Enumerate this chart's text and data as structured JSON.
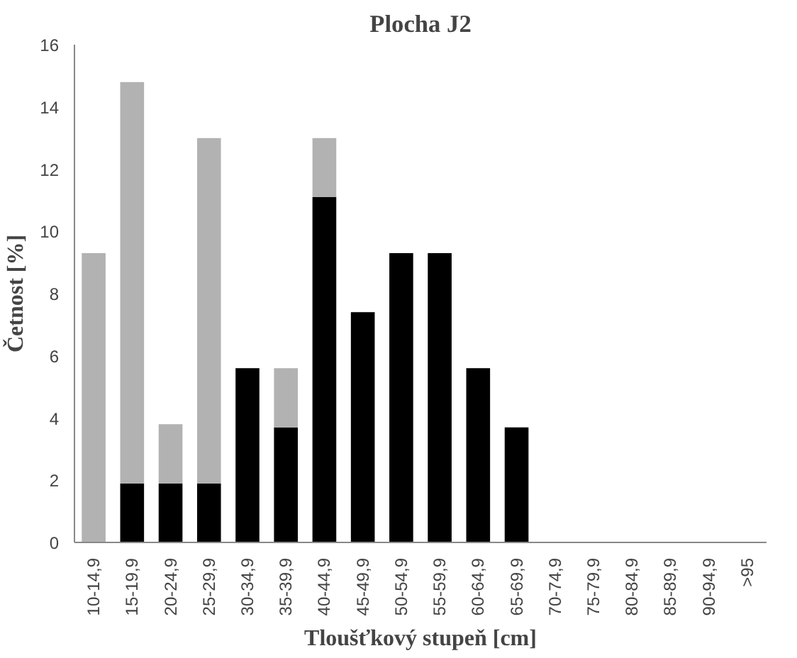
{
  "chart_data": {
    "type": "bar",
    "stacked": true,
    "title": "Plocha J2",
    "xlabel": "Tloušťkový stupeň [cm]",
    "ylabel": "Četnost [%]",
    "categories": [
      "10-14,9",
      "15-19,9",
      "20-24,9",
      "25-29,9",
      "30-34,9",
      "35-39,9",
      "40-44,9",
      "45-49,9",
      "50-54,9",
      "55-59,9",
      "60-64,9",
      "65-69,9",
      "70-74,9",
      "75-79,9",
      "80-84,9",
      "85-89,9",
      "90-94,9",
      ">95"
    ],
    "series": [
      {
        "color": "#000000",
        "values": [
          0,
          1.9,
          1.9,
          1.9,
          5.6,
          3.7,
          11.1,
          7.4,
          9.3,
          9.3,
          5.6,
          3.7,
          0,
          0,
          0,
          0,
          0,
          0
        ]
      },
      {
        "color": "#b2b2b2",
        "values": [
          9.3,
          12.9,
          1.9,
          11.1,
          0,
          1.9,
          1.9,
          0,
          0,
          0,
          0,
          0,
          0,
          0,
          0,
          0,
          0,
          0
        ]
      }
    ],
    "ylim": [
      0,
      16
    ],
    "yticks": [
      0,
      2,
      4,
      6,
      8,
      10,
      12,
      14,
      16
    ],
    "grid": false
  }
}
